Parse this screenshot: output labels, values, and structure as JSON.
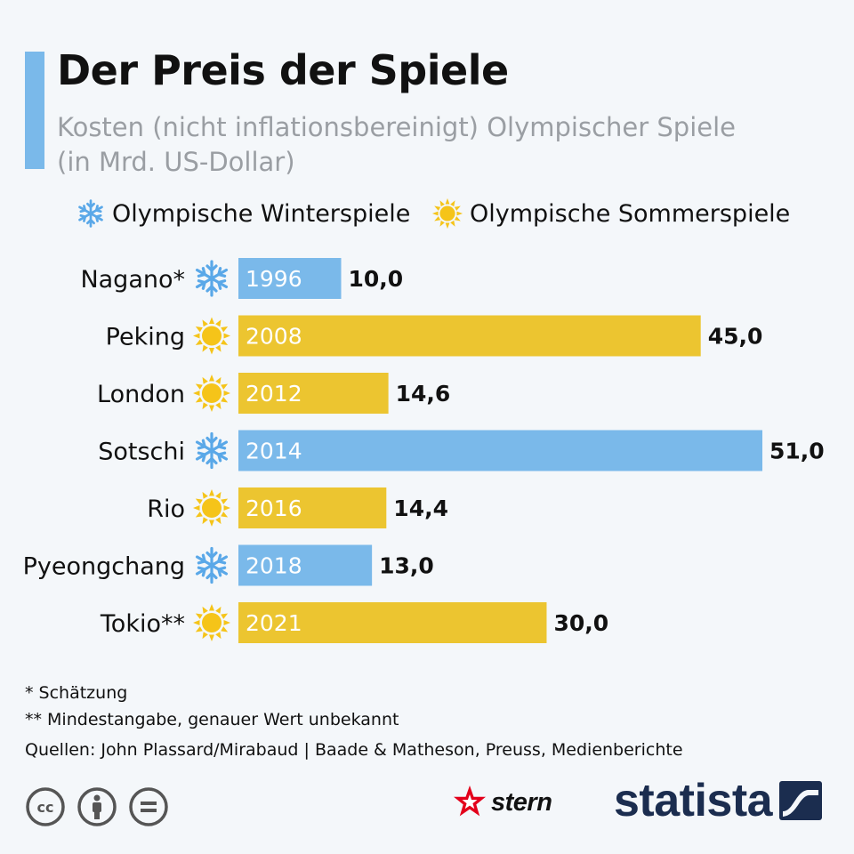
{
  "header": {
    "title": "Der Preis der Spiele",
    "subtitle_line1": "Kosten (nicht inflationsbereinigt) Olympischer Spiele",
    "subtitle_line2": "(in Mrd. US-Dollar)"
  },
  "legend": {
    "winter_label": "Olympische Winterspiele",
    "summer_label": "Olympische Sommerspiele",
    "winter_icon": "snowflake-icon",
    "summer_icon": "sun-icon"
  },
  "colors": {
    "winter": "#7ab9ea",
    "summer": "#ecc530",
    "accent": "#7ab9ea",
    "snowflake": "#5aa8e8",
    "sun": "#f5c419"
  },
  "chart_data": {
    "type": "bar",
    "orientation": "horizontal",
    "title": "Der Preis der Spiele",
    "subtitle": "Kosten (nicht inflationsbereinigt) Olympischer Spiele (in Mrd. US-Dollar)",
    "xlabel": "",
    "ylabel": "",
    "unit": "Mrd. US-Dollar",
    "xlim": [
      0,
      51
    ],
    "grid": false,
    "legend_position": "top",
    "series": [
      {
        "name": "Olympische Winterspiele",
        "key": "winter"
      },
      {
        "name": "Olympische Sommerspiele",
        "key": "summer"
      }
    ],
    "rows": [
      {
        "city": "Nagano*",
        "year": "1996",
        "value": 10.0,
        "value_label": "10,0",
        "season": "winter"
      },
      {
        "city": "Peking",
        "year": "2008",
        "value": 45.0,
        "value_label": "45,0",
        "season": "summer"
      },
      {
        "city": "London",
        "year": "2012",
        "value": 14.6,
        "value_label": "14,6",
        "season": "summer"
      },
      {
        "city": "Sotschi",
        "year": "2014",
        "value": 51.0,
        "value_label": "51,0",
        "season": "winter"
      },
      {
        "city": "Rio",
        "year": "2016",
        "value": 14.4,
        "value_label": "14,4",
        "season": "summer"
      },
      {
        "city": "Pyeongchang",
        "year": "2018",
        "value": 13.0,
        "value_label": "13,0",
        "season": "winter"
      },
      {
        "city": "Tokio**",
        "year": "2021",
        "value": 30.0,
        "value_label": "30,0",
        "season": "summer"
      }
    ]
  },
  "footnotes": {
    "estimate": "*   Schätzung",
    "minimum": "** Mindestangabe, genauer Wert unbekannt",
    "sources": "Quellen: John Plassard/Mirabaud | Baade & Matheson, Preuss, Medienberichte"
  },
  "branding": {
    "stern": "stern",
    "statista": "statista"
  }
}
